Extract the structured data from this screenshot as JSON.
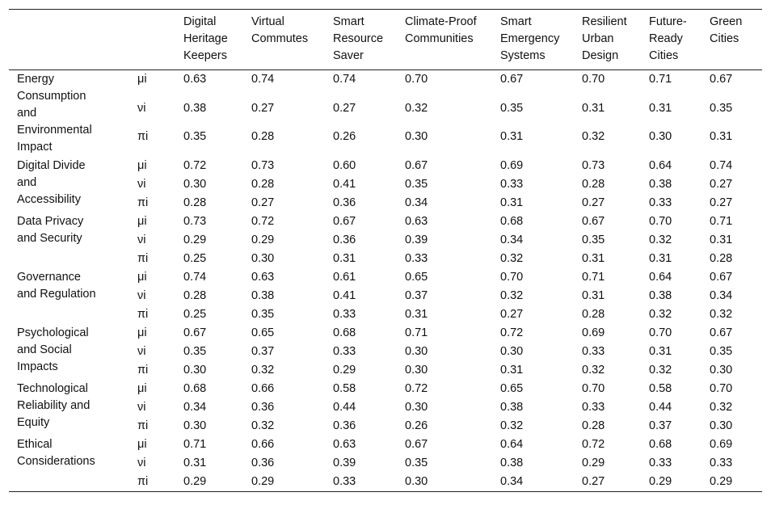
{
  "table": {
    "columns": [
      "",
      "",
      "Digital Heritage Keepers",
      "Virtual Commutes",
      "Smart Resource Saver",
      "Climate-Proof Communities",
      "Smart Emergency Systems",
      "Resilient Urban Design",
      "Future-Ready Cities",
      "Green Cities"
    ],
    "groups": [
      {
        "label": "Energy Consumption and Environmental Impact",
        "rows": [
          {
            "symbol": "μi",
            "values": [
              "0.63",
              "0.74",
              "0.74",
              "0.70",
              "0.67",
              "0.70",
              "0.71",
              "0.67"
            ]
          },
          {
            "symbol": "νi",
            "values": [
              "0.38",
              "0.27",
              "0.27",
              "0.32",
              "0.35",
              "0.31",
              "0.31",
              "0.35"
            ]
          },
          {
            "symbol": "πi",
            "values": [
              "0.35",
              "0.28",
              "0.26",
              "0.30",
              "0.31",
              "0.32",
              "0.30",
              "0.31"
            ]
          }
        ]
      },
      {
        "label": "Digital Divide and Accessibility",
        "rows": [
          {
            "symbol": "μi",
            "values": [
              "0.72",
              "0.73",
              "0.60",
              "0.67",
              "0.69",
              "0.73",
              "0.64",
              "0.74"
            ]
          },
          {
            "symbol": "νi",
            "values": [
              "0.30",
              "0.28",
              "0.41",
              "0.35",
              "0.33",
              "0.28",
              "0.38",
              "0.27"
            ]
          },
          {
            "symbol": "πi",
            "values": [
              "0.28",
              "0.27",
              "0.36",
              "0.34",
              "0.31",
              "0.27",
              "0.33",
              "0.27"
            ]
          }
        ]
      },
      {
        "label": "Data Privacy and Security",
        "rows": [
          {
            "symbol": "μi",
            "values": [
              "0.73",
              "0.72",
              "0.67",
              "0.63",
              "0.68",
              "0.67",
              "0.70",
              "0.71"
            ]
          },
          {
            "symbol": "νi",
            "values": [
              "0.29",
              "0.29",
              "0.36",
              "0.39",
              "0.34",
              "0.35",
              "0.32",
              "0.31"
            ]
          },
          {
            "symbol": "πi",
            "values": [
              "0.25",
              "0.30",
              "0.31",
              "0.33",
              "0.32",
              "0.31",
              "0.31",
              "0.28"
            ]
          }
        ]
      },
      {
        "label": "Governance and Regulation",
        "rows": [
          {
            "symbol": "μi",
            "values": [
              "0.74",
              "0.63",
              "0.61",
              "0.65",
              "0.70",
              "0.71",
              "0.64",
              "0.67"
            ]
          },
          {
            "symbol": "νi",
            "values": [
              "0.28",
              "0.38",
              "0.41",
              "0.37",
              "0.32",
              "0.31",
              "0.38",
              "0.34"
            ]
          },
          {
            "symbol": "πi",
            "values": [
              "0.25",
              "0.35",
              "0.33",
              "0.31",
              "0.27",
              "0.28",
              "0.32",
              "0.32"
            ]
          }
        ]
      },
      {
        "label": "Psychological and Social Impacts",
        "rows": [
          {
            "symbol": "μi",
            "values": [
              "0.67",
              "0.65",
              "0.68",
              "0.71",
              "0.72",
              "0.69",
              "0.70",
              "0.67"
            ]
          },
          {
            "symbol": "νi",
            "values": [
              "0.35",
              "0.37",
              "0.33",
              "0.30",
              "0.30",
              "0.33",
              "0.31",
              "0.35"
            ]
          },
          {
            "symbol": "πi",
            "values": [
              "0.30",
              "0.32",
              "0.29",
              "0.30",
              "0.31",
              "0.32",
              "0.32",
              "0.30"
            ]
          }
        ]
      },
      {
        "label": "Technological Reliability and Equity",
        "rows": [
          {
            "symbol": "μi",
            "values": [
              "0.68",
              "0.66",
              "0.58",
              "0.72",
              "0.65",
              "0.70",
              "0.58",
              "0.70"
            ]
          },
          {
            "symbol": "νi",
            "values": [
              "0.34",
              "0.36",
              "0.44",
              "0.30",
              "0.38",
              "0.33",
              "0.44",
              "0.32"
            ]
          },
          {
            "symbol": "πi",
            "values": [
              "0.30",
              "0.32",
              "0.36",
              "0.26",
              "0.32",
              "0.28",
              "0.37",
              "0.30"
            ]
          }
        ]
      },
      {
        "label": "Ethical Considerations",
        "rows": [
          {
            "symbol": "μi",
            "values": [
              "0.71",
              "0.66",
              "0.63",
              "0.67",
              "0.64",
              "0.72",
              "0.68",
              "0.69"
            ]
          },
          {
            "symbol": "νi",
            "values": [
              "0.31",
              "0.36",
              "0.39",
              "0.35",
              "0.38",
              "0.29",
              "0.33",
              "0.33"
            ]
          },
          {
            "symbol": "πi",
            "values": [
              "0.29",
              "0.29",
              "0.33",
              "0.30",
              "0.34",
              "0.27",
              "0.29",
              "0.29"
            ]
          }
        ]
      }
    ]
  }
}
